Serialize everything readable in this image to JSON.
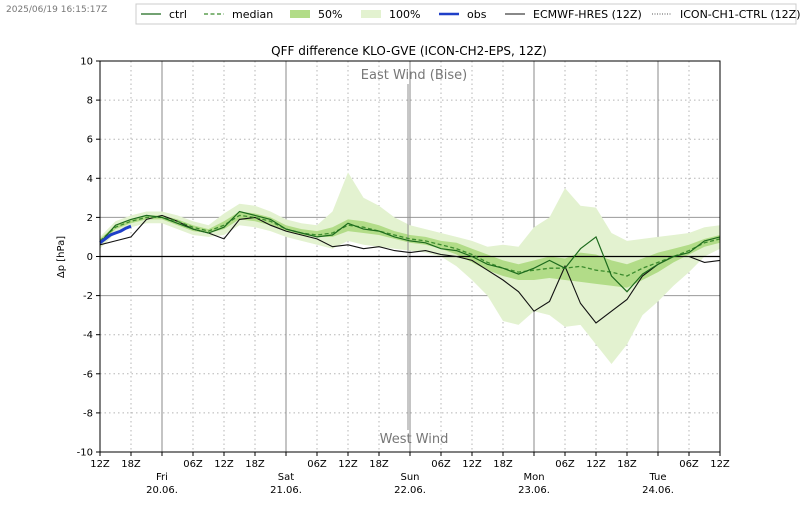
{
  "header": {
    "timestamp": "2025/06/19 16:15:17Z"
  },
  "legend": {
    "items": [
      {
        "key": "ctrl",
        "label": "ctrl"
      },
      {
        "key": "median",
        "label": "median"
      },
      {
        "key": "p50",
        "label": "50%"
      },
      {
        "key": "p100",
        "label": "100%"
      },
      {
        "key": "obs",
        "label": "obs"
      },
      {
        "key": "ecmwf",
        "label": "ECMWF-HRES (12Z)"
      },
      {
        "key": "ich1",
        "label": "ICON-CH1-CTRL (12Z)"
      }
    ]
  },
  "chart_data": {
    "type": "line",
    "title": "QFF difference KLO-GVE (ICON-CH2-EPS, 12Z)",
    "ylabel": "Δp [hPa]",
    "xlabel": "",
    "ylim": [
      -10,
      10
    ],
    "yticks": [
      -10,
      -8,
      -6,
      -4,
      -2,
      0,
      2,
      4,
      6,
      8,
      10
    ],
    "xlim_hours": [
      0,
      120
    ],
    "grid": true,
    "legend_position": "top",
    "annotations": {
      "top": "East Wind (Bise)",
      "bottom": "West Wind"
    },
    "x_ticks": [
      {
        "h": 0,
        "label": "12Z"
      },
      {
        "h": 6,
        "label": "18Z"
      },
      {
        "h": 12,
        "label": ""
      },
      {
        "h": 18,
        "label": "06Z"
      },
      {
        "h": 24,
        "label": "12Z"
      },
      {
        "h": 30,
        "label": "18Z"
      },
      {
        "h": 36,
        "label": ""
      },
      {
        "h": 42,
        "label": "06Z"
      },
      {
        "h": 48,
        "label": "12Z"
      },
      {
        "h": 54,
        "label": "18Z"
      },
      {
        "h": 60,
        "label": ""
      },
      {
        "h": 66,
        "label": "06Z"
      },
      {
        "h": 72,
        "label": "12Z"
      },
      {
        "h": 78,
        "label": "18Z"
      },
      {
        "h": 84,
        "label": ""
      },
      {
        "h": 90,
        "label": "06Z"
      },
      {
        "h": 96,
        "label": "12Z"
      },
      {
        "h": 102,
        "label": "18Z"
      },
      {
        "h": 108,
        "label": ""
      },
      {
        "h": 114,
        "label": "06Z"
      },
      {
        "h": 120,
        "label": "12Z"
      }
    ],
    "days": [
      {
        "h": 12,
        "day": "Fri",
        "date": "20.06."
      },
      {
        "h": 36,
        "day": "Sat",
        "date": "21.06."
      },
      {
        "h": 60,
        "day": "Sun",
        "date": "22.06."
      },
      {
        "h": 84,
        "day": "Mon",
        "date": "23.06."
      },
      {
        "h": 108,
        "day": "Tue",
        "date": "24.06."
      }
    ],
    "x": [
      0,
      3,
      6,
      9,
      12,
      15,
      18,
      21,
      24,
      27,
      30,
      33,
      36,
      39,
      42,
      45,
      48,
      51,
      54,
      57,
      60,
      63,
      66,
      69,
      72,
      75,
      78,
      81,
      84,
      87,
      90,
      93,
      96,
      99,
      102,
      105,
      108,
      111,
      114,
      117,
      120
    ],
    "series": [
      {
        "name": "ctrl",
        "values": [
          0.7,
          1.6,
          1.9,
          2.1,
          2.0,
          1.7,
          1.4,
          1.2,
          1.5,
          2.3,
          2.1,
          1.9,
          1.4,
          1.2,
          1.0,
          1.1,
          1.7,
          1.4,
          1.3,
          1.0,
          0.8,
          0.7,
          0.4,
          0.3,
          0.0,
          -0.4,
          -0.6,
          -0.9,
          -0.6,
          -0.2,
          -0.6,
          0.4,
          1.0,
          -1.0,
          -1.8,
          -0.9,
          -0.4,
          0.0,
          0.2,
          0.8,
          1.0
        ]
      },
      {
        "name": "median",
        "values": [
          0.8,
          1.5,
          1.8,
          2.0,
          2.0,
          1.8,
          1.5,
          1.3,
          1.6,
          2.1,
          2.0,
          1.8,
          1.4,
          1.2,
          1.1,
          1.2,
          1.6,
          1.5,
          1.3,
          1.1,
          0.9,
          0.8,
          0.6,
          0.4,
          0.1,
          -0.3,
          -0.6,
          -0.8,
          -0.7,
          -0.6,
          -0.6,
          -0.5,
          -0.7,
          -0.8,
          -1.0,
          -0.6,
          -0.3,
          0.0,
          0.3,
          0.7,
          0.9
        ]
      },
      {
        "name": "50%",
        "lower": [
          0.6,
          1.4,
          1.7,
          1.9,
          1.9,
          1.6,
          1.3,
          1.2,
          1.4,
          1.9,
          1.8,
          1.6,
          1.3,
          1.1,
          1.0,
          1.0,
          1.3,
          1.2,
          1.1,
          0.9,
          0.7,
          0.6,
          0.4,
          0.1,
          -0.3,
          -0.7,
          -1.0,
          -1.2,
          -1.2,
          -1.1,
          -1.2,
          -1.3,
          -1.4,
          -1.5,
          -1.6,
          -1.2,
          -0.8,
          -0.3,
          0.1,
          0.5,
          0.7
        ],
        "upper": [
          0.9,
          1.6,
          1.9,
          2.1,
          2.1,
          1.9,
          1.6,
          1.4,
          1.8,
          2.3,
          2.2,
          2.0,
          1.6,
          1.4,
          1.3,
          1.5,
          1.9,
          1.8,
          1.6,
          1.3,
          1.1,
          1.0,
          0.8,
          0.7,
          0.4,
          0.1,
          -0.2,
          -0.4,
          -0.2,
          0.0,
          -0.1,
          0.2,
          0.1,
          -0.2,
          -0.4,
          -0.1,
          0.2,
          0.4,
          0.6,
          0.9,
          1.1
        ]
      },
      {
        "name": "100%",
        "lower": [
          0.4,
          1.2,
          1.5,
          1.7,
          1.7,
          1.4,
          1.1,
          1.0,
          1.1,
          1.6,
          1.5,
          1.3,
          1.0,
          0.8,
          0.6,
          0.4,
          0.8,
          0.6,
          0.5,
          0.4,
          0.3,
          0.2,
          0.0,
          -0.5,
          -1.2,
          -2.0,
          -3.3,
          -3.5,
          -2.8,
          -3.0,
          -3.6,
          -3.5,
          -4.5,
          -5.5,
          -4.5,
          -3.0,
          -2.3,
          -1.5,
          -0.8,
          0.0,
          0.4
        ],
        "upper": [
          1.0,
          1.8,
          2.1,
          2.3,
          2.3,
          2.1,
          1.8,
          1.6,
          2.2,
          2.7,
          2.6,
          2.3,
          1.9,
          1.7,
          1.6,
          2.3,
          4.3,
          3.0,
          2.6,
          2.0,
          1.6,
          1.4,
          1.2,
          1.0,
          0.8,
          0.5,
          0.6,
          0.5,
          1.5,
          2.0,
          3.5,
          2.6,
          2.5,
          1.2,
          0.8,
          0.9,
          1.0,
          1.1,
          1.2,
          1.5,
          1.6
        ]
      },
      {
        "name": "obs",
        "x": [
          0,
          1,
          2,
          3,
          4,
          5,
          6
        ],
        "values": [
          0.7,
          0.9,
          1.1,
          1.2,
          1.3,
          1.45,
          1.55
        ]
      },
      {
        "name": "ECMWF-HRES (12Z)",
        "values": [
          0.6,
          0.8,
          1.0,
          1.9,
          2.1,
          1.8,
          1.4,
          1.2,
          0.9,
          1.9,
          2.0,
          1.6,
          1.3,
          1.1,
          0.9,
          0.5,
          0.6,
          0.4,
          0.5,
          0.3,
          0.2,
          0.3,
          0.1,
          0.0,
          -0.2,
          -0.7,
          -1.2,
          -1.8,
          -2.8,
          -2.3,
          -0.5,
          -2.4,
          -3.4,
          -2.8,
          -2.2,
          -1.0,
          -0.4,
          0.0,
          0.0,
          -0.3,
          -0.2
        ]
      }
    ]
  }
}
